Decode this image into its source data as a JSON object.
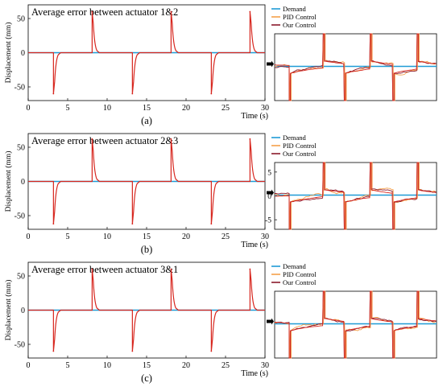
{
  "colors": {
    "demand": "#1f9bd6",
    "pid": "#f5a04a",
    "ours": "#d7261e",
    "ours_zoom": "#8b1a2b"
  },
  "chart_data": [
    {
      "type": "line",
      "panel_label": "(a)",
      "title": "Average error between actuator 1&2",
      "xlabel": "Time (s)",
      "ylabel": "Displacement (mm)",
      "xlim": [
        0,
        30
      ],
      "ylim": [
        -70,
        70
      ],
      "xticks": [
        0,
        5,
        10,
        15,
        20,
        25,
        30
      ],
      "yticks": [
        -50,
        0,
        50
      ],
      "legend": [
        "Demand",
        "PID Control",
        "Our Control"
      ],
      "pulses": [
        {
          "t": 3.2,
          "peak": -60
        },
        {
          "t": 8.1,
          "peak": 60
        },
        {
          "t": 13.2,
          "peak": -60
        },
        {
          "t": 18.1,
          "peak": 60
        },
        {
          "t": 23.2,
          "peak": -60
        },
        {
          "t": 28.1,
          "peak": 60
        }
      ],
      "zoom_yticks": [],
      "zoom_ylim": [
        -8,
        8
      ]
    },
    {
      "type": "line",
      "panel_label": "(b)",
      "title": "Average error between actuator 2&3",
      "xlabel": "Time (s)",
      "ylabel": "Displacement (mm)",
      "xlim": [
        0,
        30
      ],
      "ylim": [
        -70,
        70
      ],
      "xticks": [
        0,
        5,
        10,
        15,
        20,
        25,
        30
      ],
      "yticks": [
        -50,
        0,
        50
      ],
      "legend": [
        "Demand",
        "PID Control",
        "Our Control"
      ],
      "pulses": [
        {
          "t": 3.2,
          "peak": -62
        },
        {
          "t": 8.1,
          "peak": 62
        },
        {
          "t": 13.2,
          "peak": -62
        },
        {
          "t": 18.1,
          "peak": 62
        },
        {
          "t": 23.2,
          "peak": -62
        },
        {
          "t": 28.1,
          "peak": 62
        }
      ],
      "zoom_yticks": [
        -5,
        0,
        5
      ],
      "zoom_ylim": [
        -7,
        7
      ]
    },
    {
      "type": "line",
      "panel_label": "(c)",
      "title": "Average error between actuator 3&1",
      "xlabel": "Time (s)",
      "ylabel": "Displacement (mm)",
      "xlim": [
        0,
        30
      ],
      "ylim": [
        -70,
        70
      ],
      "xticks": [
        0,
        5,
        10,
        15,
        20,
        25,
        30
      ],
      "yticks": [
        -50,
        0,
        50
      ],
      "legend": [
        "Demand",
        "PID Control",
        "Our Control"
      ],
      "pulses": [
        {
          "t": 3.2,
          "peak": -60
        },
        {
          "t": 8.1,
          "peak": 60
        },
        {
          "t": 13.2,
          "peak": -60
        },
        {
          "t": 18.1,
          "peak": 60
        },
        {
          "t": 23.2,
          "peak": -60
        },
        {
          "t": 28.1,
          "peak": 60
        }
      ],
      "zoom_yticks": [],
      "zoom_ylim": [
        -8,
        8
      ]
    }
  ]
}
